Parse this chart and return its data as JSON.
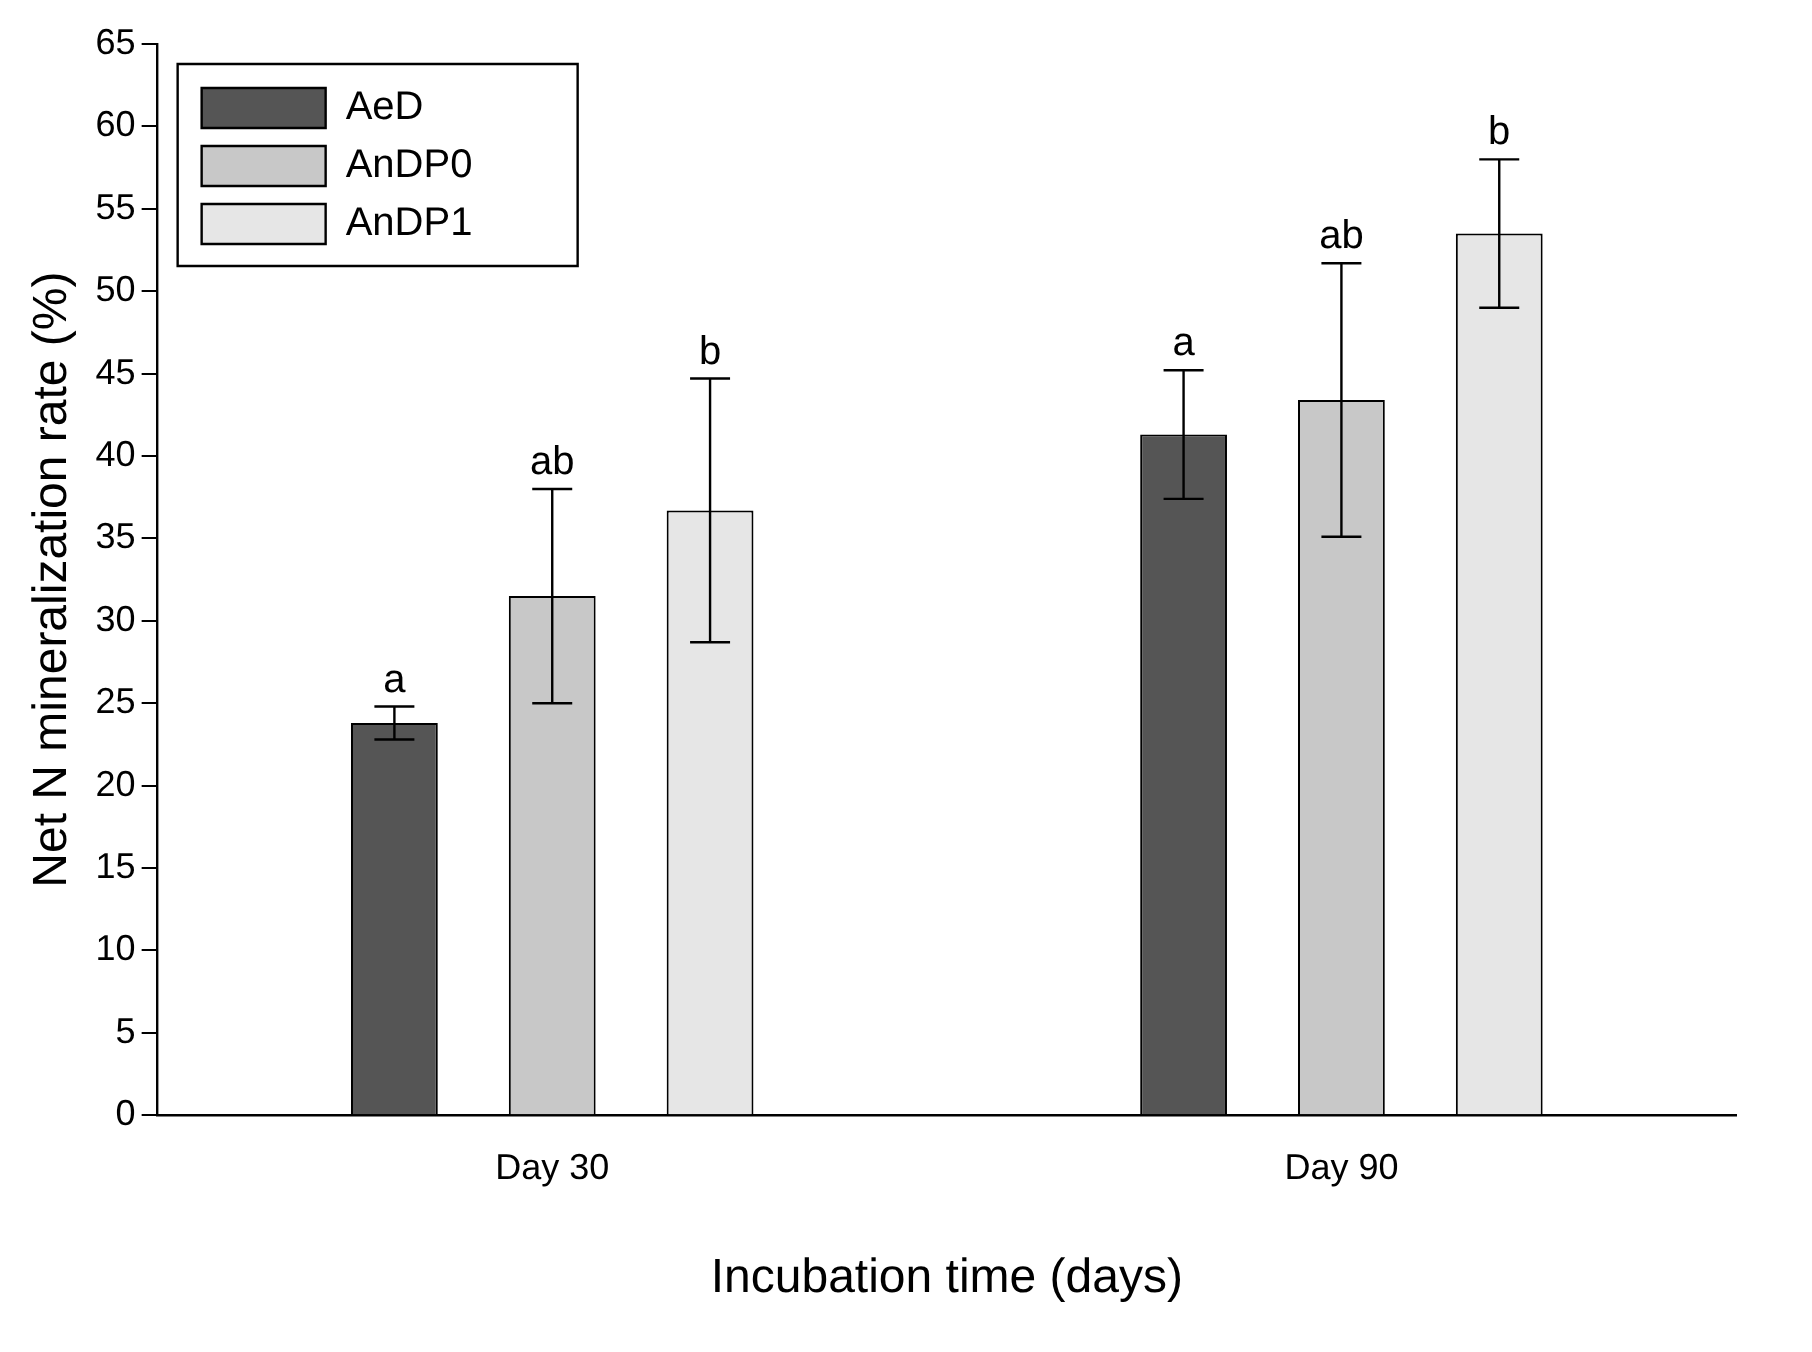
{
  "chart_data": {
    "type": "bar",
    "xlabel": "Incubation time (days)",
    "ylabel": "Net N mineralization rate (%)",
    "categories": [
      "Day 30",
      "Day 90"
    ],
    "series": [
      {
        "name": "AeD",
        "color": "#555555",
        "values": [
          23.8,
          41.3
        ],
        "errors": [
          1.0,
          3.9
        ]
      },
      {
        "name": "AnDP0",
        "color": "#c8c8c8",
        "values": [
          31.5,
          43.4
        ],
        "errors": [
          6.5,
          8.3
        ]
      },
      {
        "name": "AnDP1",
        "color": "#e6e6e6",
        "values": [
          36.7,
          53.5
        ],
        "errors": [
          8.0,
          4.5
        ]
      }
    ],
    "annotations": [
      "a",
      "ab",
      "b",
      "a",
      "ab",
      "b"
    ],
    "ylim": [
      0,
      65
    ],
    "yticks": [
      0,
      5,
      10,
      15,
      20,
      25,
      30,
      35,
      40,
      45,
      50,
      55,
      60,
      65
    ],
    "grid": false,
    "legend": "top left"
  }
}
